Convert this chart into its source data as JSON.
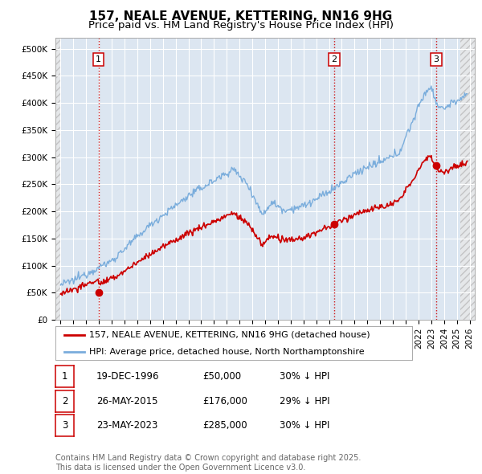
{
  "title": "157, NEALE AVENUE, KETTERING, NN16 9HG",
  "subtitle": "Price paid vs. HM Land Registry's House Price Index (HPI)",
  "ylim": [
    0,
    520000
  ],
  "yticks": [
    0,
    50000,
    100000,
    150000,
    200000,
    250000,
    300000,
    350000,
    400000,
    450000,
    500000
  ],
  "ytick_labels": [
    "£0",
    "£50K",
    "£100K",
    "£150K",
    "£200K",
    "£250K",
    "£300K",
    "£350K",
    "£400K",
    "£450K",
    "£500K"
  ],
  "xlim_start": 1993.6,
  "xlim_end": 2026.4,
  "xticks": [
    1994,
    1995,
    1996,
    1997,
    1998,
    1999,
    2000,
    2001,
    2002,
    2003,
    2004,
    2005,
    2006,
    2007,
    2008,
    2009,
    2010,
    2011,
    2012,
    2013,
    2014,
    2015,
    2016,
    2017,
    2018,
    2019,
    2020,
    2021,
    2022,
    2023,
    2024,
    2025,
    2026
  ],
  "background_color": "#ffffff",
  "plot_bg_color": "#dce6f1",
  "grid_color": "#ffffff",
  "price_paid_color": "#cc0000",
  "hpi_color": "#7aaddc",
  "sale_points": [
    {
      "year": 1996.97,
      "price": 50000,
      "label": "1"
    },
    {
      "year": 2015.4,
      "price": 176000,
      "label": "2"
    },
    {
      "year": 2023.39,
      "price": 285000,
      "label": "3"
    }
  ],
  "vline_color": "#cc0000",
  "vline_style": ":",
  "table_rows": [
    [
      "1",
      "19-DEC-1996",
      "£50,000",
      "30% ↓ HPI"
    ],
    [
      "2",
      "26-MAY-2015",
      "£176,000",
      "29% ↓ HPI"
    ],
    [
      "3",
      "23-MAY-2023",
      "£285,000",
      "30% ↓ HPI"
    ]
  ],
  "legend_labels": [
    "157, NEALE AVENUE, KETTERING, NN16 9HG (detached house)",
    "HPI: Average price, detached house, North Northamptonshire"
  ],
  "footer_text": "Contains HM Land Registry data © Crown copyright and database right 2025.\nThis data is licensed under the Open Government Licence v3.0.",
  "title_fontsize": 11,
  "subtitle_fontsize": 9.5,
  "tick_fontsize": 7.5,
  "legend_fontsize": 8,
  "table_fontsize": 8.5,
  "footer_fontsize": 7
}
